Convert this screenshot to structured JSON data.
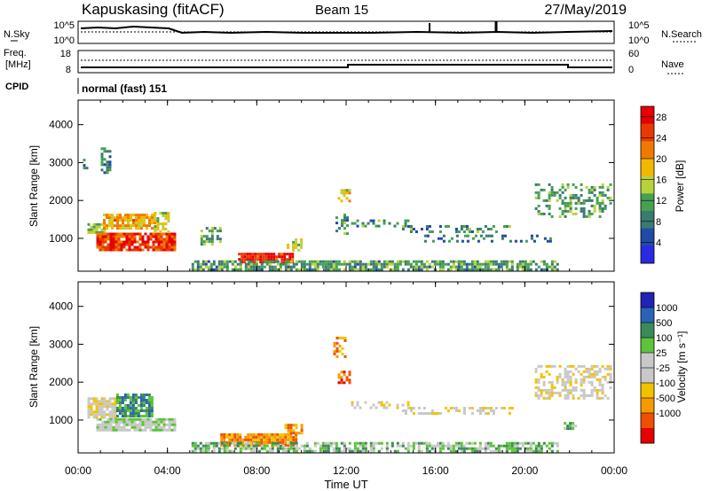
{
  "header": {
    "station": "Kapuskasing (fitACF)",
    "beam": "Beam 15",
    "date": "27/May/2019"
  },
  "noise_panel": {
    "left_label": "N.Sky",
    "right_label": "N.Search",
    "left_ticks": [
      "10^5",
      "10^0"
    ],
    "right_ticks": [
      "10^5",
      "10^0"
    ]
  },
  "freq_panel": {
    "left_label_1": "Freq.",
    "left_label_2": "[MHz]",
    "left_ticks": [
      "18",
      "8"
    ],
    "right_label": "Nave",
    "right_ticks": [
      "60",
      "0"
    ]
  },
  "cpid_panel": {
    "label": "CPID",
    "value": "normal (fast) 151"
  },
  "colors": {
    "power": [
      "#2a2ae0",
      "#1f4aa8",
      "#3a7a70",
      "#46a050",
      "#b8d23a",
      "#f2b800",
      "#f07a00",
      "#e83a00",
      "#e60000"
    ],
    "velocity": [
      "#e60000",
      "#ee5000",
      "#f59a00",
      "#f2c200",
      "#c8c8c8",
      "#c8c8c8",
      "#5ec23a",
      "#3a8a5a",
      "#2a62b8",
      "#2222b4"
    ]
  },
  "chart_data": [
    {
      "type": "heatmap",
      "name": "power",
      "ylabel": "Slant Range [km]",
      "ylim": [
        180,
        4600
      ],
      "yticks": [
        "1000",
        "2000",
        "3000",
        "4000"
      ],
      "xlim": [
        0,
        24
      ],
      "xticks": [
        "00:00",
        "04:00",
        "08:00",
        "12:00",
        "16:00",
        "20:00",
        "00:00"
      ],
      "colorbar": {
        "label": "Power [dB]",
        "ticks": [
          "4",
          "8",
          "12",
          "16",
          "20",
          "24",
          "28"
        ],
        "range": [
          0,
          30
        ]
      },
      "regions": [
        {
          "t0": 0.1,
          "t1": 0.3,
          "r0": 2850,
          "r1": 3100,
          "v": 9,
          "d": 0.5
        },
        {
          "t0": 0.9,
          "t1": 1.3,
          "r0": 2700,
          "r1": 3400,
          "v": 8,
          "d": 0.45
        },
        {
          "t0": 0.3,
          "t1": 1.1,
          "r0": 1150,
          "r1": 1400,
          "v": 14,
          "d": 0.8
        },
        {
          "t0": 1.0,
          "t1": 3.4,
          "r0": 1250,
          "r1": 1650,
          "v": 20,
          "d": 0.85
        },
        {
          "t0": 0.7,
          "t1": 4.3,
          "r0": 700,
          "r1": 1150,
          "v": 27,
          "d": 0.9
        },
        {
          "t0": 3.3,
          "t1": 4.0,
          "r0": 1200,
          "r1": 1700,
          "v": 16,
          "d": 0.6
        },
        {
          "t0": 5.4,
          "t1": 6.3,
          "r0": 850,
          "r1": 1300,
          "v": 11,
          "d": 0.45
        },
        {
          "t0": 7.1,
          "t1": 9.6,
          "r0": 380,
          "r1": 620,
          "v": 29,
          "d": 0.95
        },
        {
          "t0": 9.3,
          "t1": 10.0,
          "r0": 700,
          "r1": 1000,
          "v": 16,
          "d": 0.7
        },
        {
          "t0": 11.6,
          "t1": 12.2,
          "r0": 1950,
          "r1": 2300,
          "v": 17,
          "d": 0.7
        },
        {
          "t0": 11.5,
          "t1": 12.0,
          "r0": 1000,
          "r1": 1650,
          "v": 9,
          "d": 0.45
        },
        {
          "t0": 12.2,
          "t1": 14.8,
          "r0": 1300,
          "r1": 1500,
          "v": 9,
          "d": 0.35
        },
        {
          "t0": 14.5,
          "t1": 19.5,
          "r0": 1150,
          "r1": 1350,
          "v": 9,
          "d": 0.35
        },
        {
          "t0": 15.5,
          "t1": 21.2,
          "r0": 950,
          "r1": 1100,
          "v": 8,
          "d": 0.3
        },
        {
          "t0": 20.5,
          "t1": 23.9,
          "r0": 1550,
          "r1": 2450,
          "v": 11,
          "d": 0.4
        },
        {
          "t0": 5.0,
          "t1": 21.5,
          "r0": 200,
          "r1": 420,
          "v": 10,
          "d": 0.75
        }
      ]
    },
    {
      "type": "heatmap",
      "name": "velocity",
      "ylabel": "Slant Range [km]",
      "ylim": [
        180,
        4600
      ],
      "yticks": [
        "1000",
        "2000",
        "3000",
        "4000"
      ],
      "xlim": [
        0,
        24
      ],
      "xticks": [
        "00:00",
        "04:00",
        "08:00",
        "12:00",
        "16:00",
        "20:00",
        "00:00"
      ],
      "xlabel": "Time UT",
      "colorbar": {
        "label": "Velocity [m s⁻¹]",
        "ticks": [
          "1000",
          "500",
          "100",
          "25",
          "-25",
          "-100",
          "-500",
          "-1000"
        ]
      },
      "regions": [
        {
          "t0": 0.3,
          "t1": 1.6,
          "r0": 1050,
          "r1": 1600,
          "v": 4,
          "d": 0.85
        },
        {
          "t0": 1.6,
          "t1": 3.2,
          "r0": 1100,
          "r1": 1700,
          "v": 7,
          "d": 0.85
        },
        {
          "t0": 0.7,
          "t1": 4.2,
          "r0": 700,
          "r1": 1050,
          "v": 5,
          "d": 0.9
        },
        {
          "t0": 6.3,
          "t1": 9.7,
          "r0": 330,
          "r1": 650,
          "v": 2,
          "d": 0.9
        },
        {
          "t0": 9.2,
          "t1": 10.0,
          "r0": 650,
          "r1": 900,
          "v": 2,
          "d": 0.7
        },
        {
          "t0": 11.6,
          "t1": 12.2,
          "r0": 1950,
          "r1": 2300,
          "v": 1,
          "d": 0.7
        },
        {
          "t0": 11.4,
          "t1": 12.0,
          "r0": 2700,
          "r1": 3200,
          "v": 2,
          "d": 0.5
        },
        {
          "t0": 12.2,
          "t1": 14.8,
          "r0": 1300,
          "r1": 1500,
          "v": 4,
          "d": 0.35
        },
        {
          "t0": 14.5,
          "t1": 19.5,
          "r0": 1150,
          "r1": 1350,
          "v": 4,
          "d": 0.4
        },
        {
          "t0": 20.5,
          "t1": 23.9,
          "r0": 1550,
          "r1": 2450,
          "v": 4,
          "d": 0.45
        },
        {
          "t0": 5.0,
          "t1": 21.5,
          "r0": 200,
          "r1": 420,
          "v": 6,
          "d": 0.65
        },
        {
          "t0": 21.8,
          "t1": 22.3,
          "r0": 800,
          "r1": 950,
          "v": 6,
          "d": 0.7
        }
      ]
    }
  ]
}
